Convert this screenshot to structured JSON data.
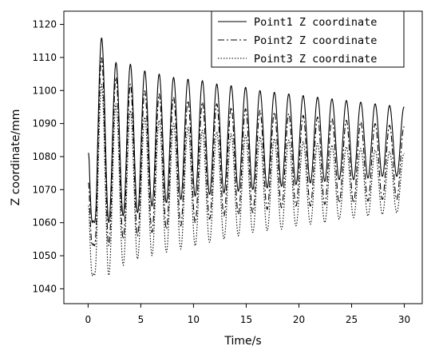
{
  "chart_data": {
    "type": "line",
    "title": "",
    "xlabel": "Time/s",
    "ylabel": "Z coordinate/mm",
    "xlim": [
      -2.3,
      31.7
    ],
    "ylim": [
      1035.5,
      1124
    ],
    "x_ticks": [
      0,
      5,
      10,
      15,
      20,
      25,
      30
    ],
    "y_ticks": [
      1040,
      1050,
      1060,
      1070,
      1080,
      1090,
      1100,
      1110,
      1120
    ],
    "grid": false,
    "legend_position": "top-right",
    "x_resolution": 0.05,
    "series": [
      {
        "name": "Point1 Z coordinate",
        "line_style": "solid",
        "color": "#000000",
        "start_value": 1081,
        "first_peak": 1116,
        "first_trough": 1060,
        "final_peak": 1095,
        "final_trough": 1074,
        "peaks": [
          1116,
          1108.5,
          1108,
          1106,
          1105,
          1104,
          1103.5,
          1103,
          1102,
          1101.5,
          1101,
          1100,
          1099.5,
          1099,
          1098.5,
          1098,
          1097.5,
          1097,
          1096.5,
          1096,
          1095.5,
          1095
        ],
        "troughs": [
          1060,
          1062,
          1063,
          1065,
          1066,
          1067,
          1068,
          1068.5,
          1069,
          1069.5,
          1070,
          1070.5,
          1071,
          1071.5,
          1072,
          1072.5,
          1073,
          1073,
          1073.5,
          1074,
          1074
        ]
      },
      {
        "name": "Point2 Z coordinate",
        "line_style": "dashdot",
        "color": "#000000",
        "start_value": 1072,
        "first_peak": 1110,
        "first_trough": 1053,
        "final_peak": 1089,
        "final_trough": 1067,
        "peaks": [
          1110,
          1104,
          1102,
          1100,
          1099,
          1098,
          1097,
          1096.5,
          1096,
          1095,
          1094.5,
          1094,
          1093.5,
          1093,
          1092.5,
          1092,
          1091.5,
          1091,
          1090.5,
          1090,
          1089.5,
          1089
        ],
        "troughs": [
          1053,
          1055,
          1056,
          1057,
          1058,
          1059,
          1060,
          1061,
          1062,
          1062.5,
          1063,
          1064,
          1064.5,
          1065,
          1065,
          1065.5,
          1066,
          1066,
          1066.5,
          1067,
          1067
        ]
      },
      {
        "name": "Point3 Z coordinate",
        "line_style": "dotted",
        "color": "#000000",
        "start_value": 1065,
        "first_peak": 1102,
        "first_trough": 1044,
        "final_peak": 1081,
        "final_trough": 1063,
        "peaks": [
          1102,
          1096,
          1094,
          1092,
          1091,
          1090,
          1089,
          1088,
          1087.5,
          1087,
          1086.5,
          1086,
          1085.5,
          1085,
          1084.5,
          1084,
          1083.5,
          1083,
          1082.5,
          1082,
          1081.5,
          1081
        ],
        "troughs": [
          1044,
          1047,
          1049,
          1050,
          1051,
          1052,
          1053,
          1054,
          1055,
          1056,
          1057,
          1057.5,
          1058,
          1059,
          1059.5,
          1060,
          1061,
          1061.5,
          1062,
          1062.5,
          1063
        ]
      }
    ]
  }
}
